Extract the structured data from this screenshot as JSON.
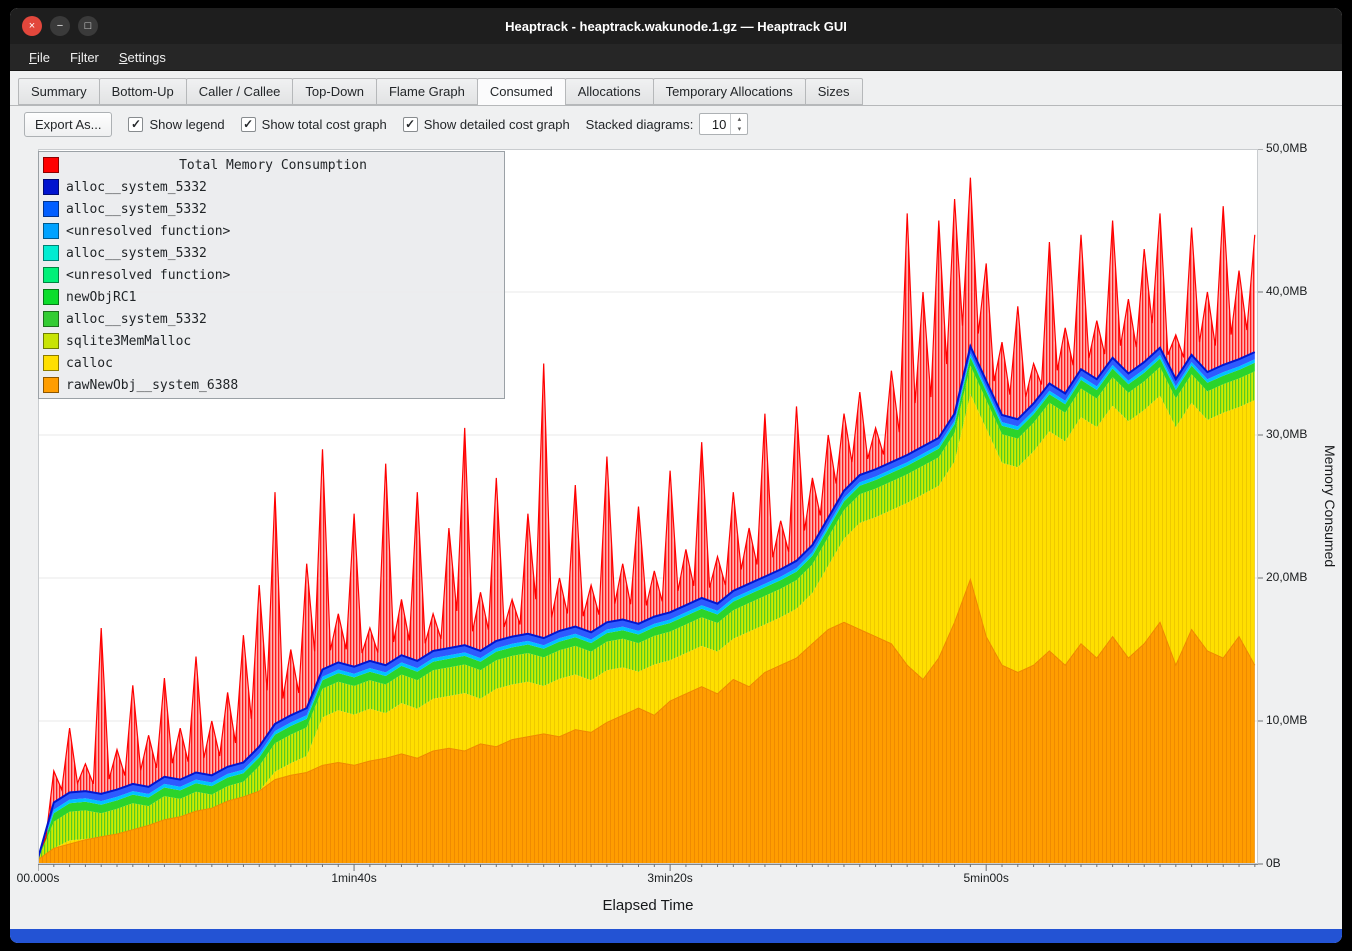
{
  "window": {
    "title": "Heaptrack - heaptrack.wakunode.1.gz — Heaptrack GUI",
    "controls": {
      "close": "×",
      "minimize": "−",
      "maximize": "□"
    }
  },
  "menubar": {
    "items": [
      {
        "label": "File",
        "underline": 0
      },
      {
        "label": "Filter",
        "underline": 1
      },
      {
        "label": "Settings",
        "underline": 0
      }
    ]
  },
  "tabs": {
    "items": [
      {
        "label": "Summary",
        "active": false
      },
      {
        "label": "Bottom-Up",
        "active": false
      },
      {
        "label": "Caller / Callee",
        "active": false
      },
      {
        "label": "Top-Down",
        "active": false
      },
      {
        "label": "Flame Graph",
        "active": false
      },
      {
        "label": "Consumed",
        "active": true
      },
      {
        "label": "Allocations",
        "active": false
      },
      {
        "label": "Temporary Allocations",
        "active": false
      },
      {
        "label": "Sizes",
        "active": false
      }
    ]
  },
  "toolbar": {
    "export_button": "Export As...",
    "check_glyph": "✓",
    "spin_up": "▴",
    "spin_down": "▾",
    "checkboxes": [
      {
        "label": "Show legend",
        "checked": true
      },
      {
        "label": "Show total cost graph",
        "checked": true
      },
      {
        "label": "Show detailed cost graph",
        "checked": true
      }
    ],
    "stacked_label": "Stacked diagrams:",
    "stacked_value": "10"
  },
  "legend": {
    "title": "Total Memory Consumption",
    "title_color": "#ff0000",
    "entries": [
      {
        "label": "alloc__system_5332",
        "color": "#0013cf"
      },
      {
        "label": "alloc__system_5332",
        "color": "#015eff"
      },
      {
        "label": "<unresolved function>",
        "color": "#00a2ff"
      },
      {
        "label": "alloc__system_5332",
        "color": "#00ecd2"
      },
      {
        "label": "<unresolved function>",
        "color": "#00f078"
      },
      {
        "label": "newObjRC1",
        "color": "#0ddd2c"
      },
      {
        "label": "alloc__system_5332",
        "color": "#33cc33"
      },
      {
        "label": "sqlite3MemMalloc",
        "color": "#c8e405"
      },
      {
        "label": "calloc",
        "color": "#ffdf00"
      },
      {
        "label": "rawNewObj__system_6388",
        "color": "#ff9d00"
      }
    ]
  },
  "chart_data": {
    "type": "area",
    "title": "Total Memory Consumption",
    "xlabel": "Elapsed Time",
    "ylabel": "Memory Consumed",
    "xlim": [
      0,
      386
    ],
    "ylim": [
      0,
      50
    ],
    "x_ticks": [
      "00.000s",
      "1min40s",
      "3min20s",
      "5min00s"
    ],
    "x_tick_seconds": [
      0,
      100,
      200,
      300
    ],
    "y_ticks": [
      "0B",
      "10,0MB",
      "20,0MB",
      "30,0MB",
      "40,0MB",
      "50,0MB"
    ],
    "y_tick_values": [
      0,
      10,
      20,
      30,
      40,
      50
    ],
    "unit": "MB",
    "t_seconds": [
      0,
      5,
      10,
      15,
      20,
      25,
      30,
      35,
      40,
      45,
      50,
      55,
      60,
      65,
      70,
      75,
      80,
      85,
      90,
      95,
      100,
      105,
      110,
      115,
      120,
      125,
      130,
      135,
      140,
      145,
      150,
      155,
      160,
      165,
      170,
      175,
      180,
      185,
      190,
      195,
      200,
      205,
      210,
      215,
      220,
      225,
      230,
      235,
      240,
      245,
      250,
      255,
      260,
      265,
      270,
      275,
      280,
      285,
      290,
      295,
      300,
      305,
      310,
      315,
      320,
      325,
      330,
      335,
      340,
      345,
      350,
      355,
      360,
      365,
      370,
      375,
      380,
      385
    ],
    "total_mb": [
      0.6,
      6.5,
      9.5,
      7.0,
      16.5,
      8.0,
      12.5,
      9.0,
      13.0,
      9.5,
      14.5,
      10.0,
      12.0,
      16.0,
      19.5,
      26.0,
      15.0,
      21.0,
      29.0,
      17.5,
      24.5,
      16.5,
      28.0,
      18.5,
      26.0,
      17.5,
      23.5,
      30.5,
      19.0,
      27.0,
      18.5,
      24.5,
      35.0,
      20.0,
      26.5,
      19.5,
      28.5,
      21.0,
      25.0,
      20.5,
      27.5,
      22.0,
      29.5,
      21.5,
      26.0,
      23.5,
      31.5,
      24.0,
      32.0,
      27.0,
      30.0,
      31.5,
      33.0,
      30.5,
      34.5,
      45.5,
      40.0,
      45.0,
      46.5,
      48.0,
      42.0,
      36.5,
      39.0,
      35.0,
      43.5,
      37.5,
      44.0,
      38.0,
      45.0,
      39.5,
      43.0,
      45.5,
      37.0,
      44.5,
      40.0,
      46.0,
      41.5,
      44.0
    ],
    "stack_top_mb": [
      0.4,
      4.3,
      5.0,
      5.1,
      4.9,
      5.2,
      5.6,
      5.4,
      6.1,
      5.9,
      6.4,
      6.2,
      6.8,
      7.1,
      8.2,
      9.8,
      10.4,
      10.9,
      13.6,
      14.1,
      13.8,
      14.2,
      13.9,
      14.6,
      14.2,
      14.9,
      15.1,
      15.3,
      14.9,
      15.6,
      15.9,
      16.1,
      15.8,
      16.3,
      16.6,
      16.2,
      16.9,
      17.1,
      16.8,
      17.3,
      17.6,
      18.1,
      18.6,
      18.2,
      19.1,
      19.6,
      20.1,
      20.6,
      21.2,
      22.3,
      24.2,
      26.1,
      27.2,
      27.6,
      28.1,
      28.6,
      29.2,
      29.8,
      31.5,
      36.2,
      33.8,
      31.4,
      31.1,
      32.2,
      33.6,
      32.9,
      34.6,
      33.9,
      35.4,
      34.3,
      35.1,
      36.1,
      33.9,
      35.6,
      34.4,
      34.9,
      35.3,
      35.8
    ],
    "orange_top_mb": [
      0.3,
      1.1,
      1.4,
      1.7,
      1.9,
      2.1,
      2.4,
      2.7,
      3.1,
      3.3,
      3.7,
      3.9,
      4.4,
      4.7,
      5.1,
      5.9,
      6.2,
      6.4,
      6.9,
      7.1,
      6.9,
      7.2,
      7.4,
      7.7,
      7.4,
      7.9,
      8.1,
      7.9,
      8.4,
      8.2,
      8.7,
      8.9,
      9.1,
      8.9,
      9.4,
      9.2,
      9.9,
      10.4,
      10.9,
      10.4,
      11.4,
      11.9,
      12.4,
      11.9,
      12.9,
      12.4,
      13.4,
      13.9,
      14.4,
      15.4,
      16.4,
      16.9,
      16.4,
      15.9,
      15.4,
      13.9,
      12.9,
      14.4,
      16.9,
      19.9,
      15.9,
      13.9,
      13.4,
      13.9,
      14.9,
      13.9,
      15.4,
      14.4,
      15.9,
      14.4,
      15.4,
      16.9,
      13.9,
      16.4,
      14.9,
      14.4,
      15.9,
      13.9
    ],
    "bands_mb": {
      "blue": 0.5,
      "cyan": 0.25,
      "green": 0.6,
      "yellowgreen": 2.0
    },
    "colors": {
      "orange": "#ff9d00",
      "orange_stripe": "#ef8a00",
      "yellow": "#ffdf00",
      "yellow_stripe": "#eec900",
      "yellowgreen": "#cdeb00",
      "yg_stripe": "#55cc22",
      "green": "#2bd42b",
      "cyan": "#00c3ff",
      "blue_band": "#2e5bff",
      "blue_line": "#0016d0",
      "red_line": "#ff0000",
      "red_bg": "#ffb0b0",
      "red_stripe": "#ff1a1a"
    }
  },
  "bottom_bar": {
    "color": "#2353d4"
  }
}
